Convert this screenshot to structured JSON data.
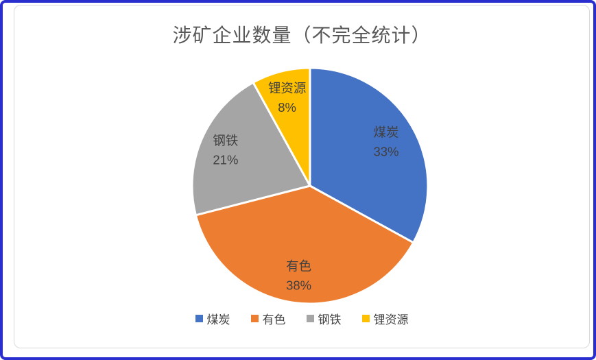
{
  "frame": {
    "outer_border_color": "#2a2ecf",
    "chart_border_color": "#d9d9d9",
    "background": "#ffffff"
  },
  "chart_data": {
    "type": "pie",
    "title": "涉矿企业数量（不完全统计）",
    "categories": [
      "煤炭",
      "有色",
      "钢铁",
      "锂资源"
    ],
    "values": [
      33,
      38,
      21,
      8
    ],
    "value_unit": "%",
    "colors": [
      "#4472C4",
      "#ED7D31",
      "#A5A5A5",
      "#FFC000"
    ],
    "start_angle_deg": 0,
    "direction": "clockwise",
    "slice_label_format": "category + percent",
    "legend_position": "bottom",
    "title_color": "#595959",
    "label_color": "#404040",
    "slice_separator_color": "#ffffff"
  },
  "legend": {
    "items": [
      {
        "label": "煤炭",
        "color": "#4472C4"
      },
      {
        "label": "有色",
        "color": "#ED7D31"
      },
      {
        "label": "钢铁",
        "color": "#A5A5A5"
      },
      {
        "label": "锂资源",
        "color": "#FFC000"
      }
    ]
  }
}
